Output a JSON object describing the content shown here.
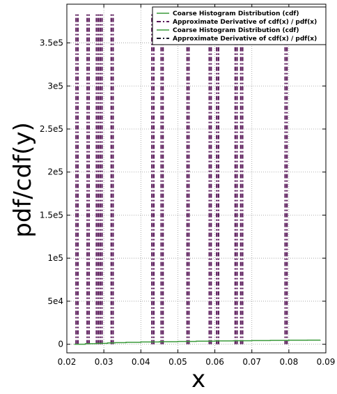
{
  "chart_data": {
    "type": "line",
    "xlabel": "x",
    "ylabel": "pdf/cdf(y)",
    "xlim": [
      0.02,
      0.09
    ],
    "ylim": [
      -10000,
      395000
    ],
    "x_ticks": [
      0.02,
      0.03,
      0.04,
      0.05,
      0.06,
      0.07,
      0.08,
      0.09
    ],
    "x_tick_labels": [
      "0.02",
      "0.03",
      "0.04",
      "0.05",
      "0.06",
      "0.07",
      "0.08",
      "0.09"
    ],
    "y_ticks": [
      0,
      50000,
      100000,
      150000,
      200000,
      250000,
      300000,
      350000
    ],
    "y_tick_labels": [
      "0",
      "5e4",
      "1e5",
      "1.5e5",
      "2e5",
      "2.5e5",
      "3e5",
      "3.5e5"
    ],
    "grid": true,
    "legend_position": "top-right",
    "spike_top": 385000,
    "series": [
      {
        "name": "Coarse Histogram Distribution (cdf)",
        "color": "#3a9a3a",
        "style": "solid",
        "x": [
          0.022,
          0.025,
          0.028,
          0.031,
          0.033,
          0.036,
          0.04,
          0.045,
          0.05,
          0.055,
          0.06,
          0.065,
          0.07,
          0.075,
          0.08,
          0.085,
          0.0885
        ],
        "y": [
          0,
          600,
          1000,
          1500,
          1800,
          2300,
          2700,
          3000,
          3300,
          3600,
          3900,
          4100,
          4300,
          4500,
          4700,
          4800,
          4900
        ]
      },
      {
        "name": "Approximate Derivative of cdf(x) / pdf(x)",
        "color": "#5a1a5a",
        "style": "dashdot",
        "spike_x": [
          0.0225,
          0.023,
          0.0255,
          0.026,
          0.028,
          0.0285,
          0.029,
          0.0295,
          0.032,
          0.0325,
          0.043,
          0.0435,
          0.0455,
          0.046,
          0.0525,
          0.053,
          0.0585,
          0.059,
          0.0605,
          0.061,
          0.0655,
          0.066,
          0.067,
          0.0675,
          0.079,
          0.0795
        ],
        "y_top": 385000
      },
      {
        "name": "Coarse Histogram Distribution (cdf)",
        "color": "#3a9a3a",
        "style": "solid"
      },
      {
        "name": "Approximate Derivative of cdf(x) / pdf(x)",
        "color": "#1a1a2a",
        "style": "dashdot"
      }
    ]
  }
}
